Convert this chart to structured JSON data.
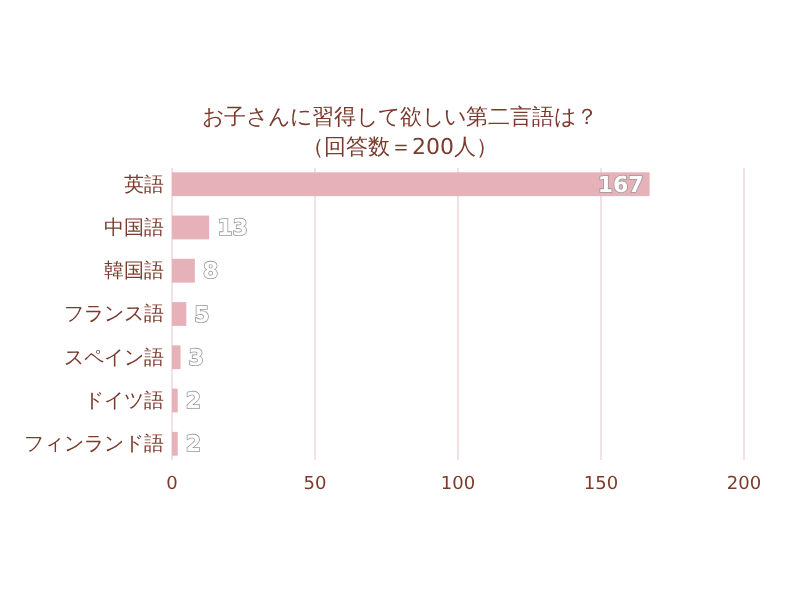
{
  "chart_data": {
    "type": "bar",
    "orientation": "horizontal",
    "title": "お子さんに習得して欲しい第二言語は？",
    "subtitle": "（回答数＝200人）",
    "categories": [
      "英語",
      "中国語",
      "韓国語",
      "フランス語",
      "スペイン語",
      "ドイツ語",
      "フィンランド語"
    ],
    "values": [
      167,
      13,
      8,
      5,
      3,
      2,
      2
    ],
    "color": "#e6b1b8",
    "xlim": [
      0,
      200
    ],
    "xticks": [
      0,
      50,
      100,
      150,
      200
    ],
    "grid": "x",
    "data_labels": true
  }
}
